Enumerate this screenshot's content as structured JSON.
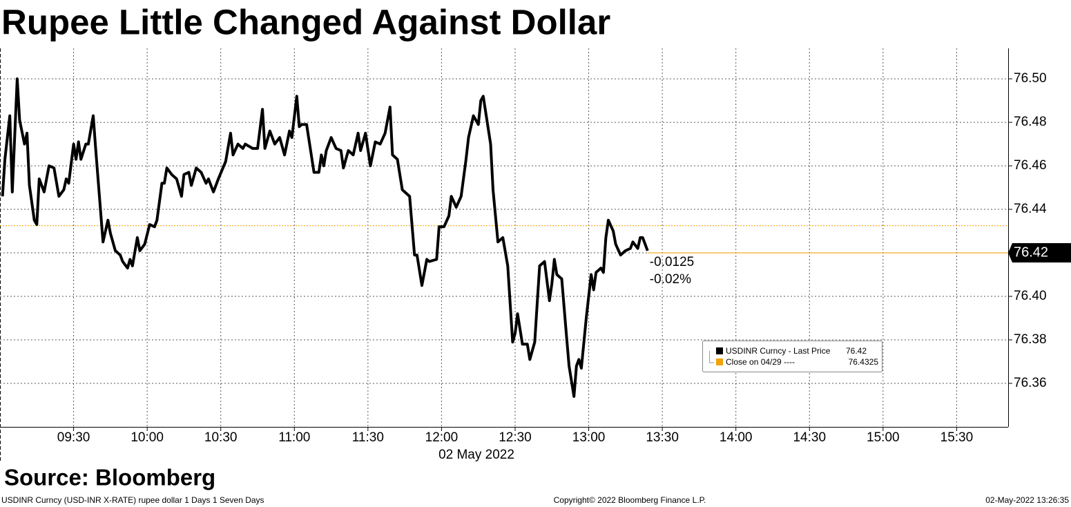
{
  "chart_data": {
    "type": "line",
    "title": "Rupee Little Changed Against Dollar",
    "source": "Source: Bloomberg",
    "footer": {
      "left": "USDINR Curncy (USD-INR X-RATE) rupee dollar 1 Days 1 Seven Days",
      "center": "Copyright© 2022 Bloomberg Finance L.P.",
      "right": "02-May-2022 13:26:35"
    },
    "x_label": "02 May 2022",
    "x": [
      "09:01",
      "09:02",
      "09:04",
      "09:05",
      "09:07",
      "09:08",
      "09:10",
      "09:11",
      "09:12",
      "09:14",
      "09:15",
      "09:16",
      "09:18",
      "09:20",
      "09:22",
      "09:24",
      "09:26",
      "09:27",
      "09:28",
      "09:30",
      "09:31",
      "09:32",
      "09:33",
      "09:35",
      "09:36",
      "09:38",
      "09:39",
      "09:42",
      "09:44",
      "09:45",
      "09:47",
      "09:49",
      "09:50",
      "09:52",
      "09:53",
      "09:54",
      "09:56",
      "09:57",
      "09:59",
      "10:01",
      "10:03",
      "10:04",
      "10:06",
      "10:07",
      "10:08",
      "10:10",
      "10:12",
      "10:14",
      "10:15",
      "10:17",
      "10:18",
      "10:20",
      "10:22",
      "10:24",
      "10:25",
      "10:27",
      "10:29",
      "10:32",
      "10:34",
      "10:35",
      "10:37",
      "10:39",
      "10:40",
      "10:43",
      "10:45",
      "10:47",
      "10:48",
      "10:50",
      "10:52",
      "10:54",
      "10:56",
      "10:58",
      "10:59",
      "11:01",
      "11:02",
      "11:03",
      "11:05",
      "11:08",
      "11:10",
      "11:11",
      "11:12",
      "11:13",
      "11:15",
      "11:17",
      "11:19",
      "11:20",
      "11:22",
      "11:24",
      "11:26",
      "11:27",
      "11:29",
      "11:31",
      "11:33",
      "11:35",
      "11:37",
      "11:39",
      "11:40",
      "11:42",
      "11:44",
      "11:45",
      "11:47",
      "11:49",
      "11:50",
      "11:52",
      "11:54",
      "11:55",
      "11:58",
      "11:59",
      "12:01",
      "12:03",
      "12:04",
      "12:06",
      "12:08",
      "12:10",
      "12:11",
      "12:13",
      "12:15",
      "12:16",
      "12:17",
      "12:20",
      "12:21",
      "12:23",
      "12:25",
      "12:27",
      "12:29",
      "12:30",
      "12:31",
      "12:33",
      "12:35",
      "12:36",
      "12:38",
      "12:39",
      "12:40",
      "12:42",
      "12:44",
      "12:45",
      "12:46",
      "12:47",
      "12:49",
      "12:51",
      "12:52",
      "12:54",
      "12:55",
      "12:56",
      "12:57",
      "12:59",
      "13:01",
      "13:02",
      "13:03",
      "13:05",
      "13:06",
      "13:07",
      "13:08",
      "13:10",
      "13:11",
      "13:13",
      "13:15",
      "13:17",
      "13:18",
      "13:20",
      "13:21",
      "13:22",
      "13:24"
    ],
    "series": [
      {
        "name": "USDINR Curncy - Last Price",
        "color": "#000000",
        "values": [
          76.446,
          76.463,
          76.483,
          76.448,
          76.5,
          76.481,
          76.47,
          76.475,
          76.451,
          76.435,
          76.433,
          76.454,
          76.448,
          76.46,
          76.459,
          76.446,
          76.449,
          76.454,
          76.452,
          76.47,
          76.463,
          76.471,
          76.463,
          76.47,
          76.47,
          76.483,
          76.468,
          76.425,
          76.435,
          76.429,
          76.421,
          76.419,
          76.416,
          76.413,
          76.417,
          76.414,
          76.427,
          76.421,
          76.424,
          76.433,
          76.432,
          76.435,
          76.452,
          76.452,
          76.459,
          76.456,
          76.454,
          76.446,
          76.456,
          76.457,
          76.451,
          76.459,
          76.457,
          76.452,
          76.454,
          76.448,
          76.454,
          76.462,
          76.475,
          76.465,
          76.47,
          76.468,
          76.47,
          76.468,
          76.468,
          76.486,
          76.468,
          76.476,
          76.47,
          76.473,
          76.465,
          76.476,
          76.473,
          76.492,
          76.478,
          76.479,
          76.479,
          76.457,
          76.457,
          76.465,
          76.46,
          76.467,
          76.473,
          76.468,
          76.467,
          76.459,
          76.467,
          76.465,
          76.475,
          76.467,
          76.475,
          76.46,
          76.471,
          76.47,
          76.475,
          76.487,
          76.465,
          76.463,
          76.449,
          76.448,
          76.446,
          76.419,
          76.419,
          76.405,
          76.417,
          76.416,
          76.417,
          76.432,
          76.432,
          76.437,
          76.446,
          76.441,
          76.446,
          76.463,
          76.473,
          76.483,
          76.479,
          76.49,
          76.492,
          76.47,
          76.449,
          76.425,
          76.427,
          76.414,
          76.379,
          76.383,
          76.392,
          76.378,
          76.378,
          76.371,
          76.379,
          76.397,
          76.414,
          76.416,
          76.398,
          76.406,
          76.417,
          76.41,
          76.408,
          76.381,
          76.368,
          76.354,
          76.368,
          76.371,
          76.367,
          76.39,
          76.41,
          76.403,
          76.411,
          76.413,
          76.411,
          76.427,
          76.435,
          76.43,
          76.424,
          76.419,
          76.421,
          76.422,
          76.425,
          76.422,
          76.427,
          76.427,
          76.421
        ]
      }
    ],
    "last_price": 76.42,
    "close": {
      "name": "Close on 04/29 ----",
      "value": 76.4325,
      "color": "#f0a30a"
    },
    "change": -0.0125,
    "change_pct": {
      "value": -0.02,
      "label": "-0.02%"
    },
    "xlim": [
      "09:00",
      "15:51"
    ],
    "xticks": [
      "09:30",
      "10:00",
      "10:30",
      "11:00",
      "11:30",
      "12:00",
      "12:30",
      "13:00",
      "13:30",
      "14:00",
      "14:30",
      "15:00",
      "15:30"
    ],
    "ylim": [
      76.34,
      76.514
    ],
    "yticks": [
      76.36,
      76.38,
      {
        "value": 76.4,
        "label": "76.40"
      },
      76.42,
      76.44,
      76.46,
      76.48,
      {
        "value": 76.5,
        "label": "76.50"
      }
    ],
    "grid": true
  }
}
